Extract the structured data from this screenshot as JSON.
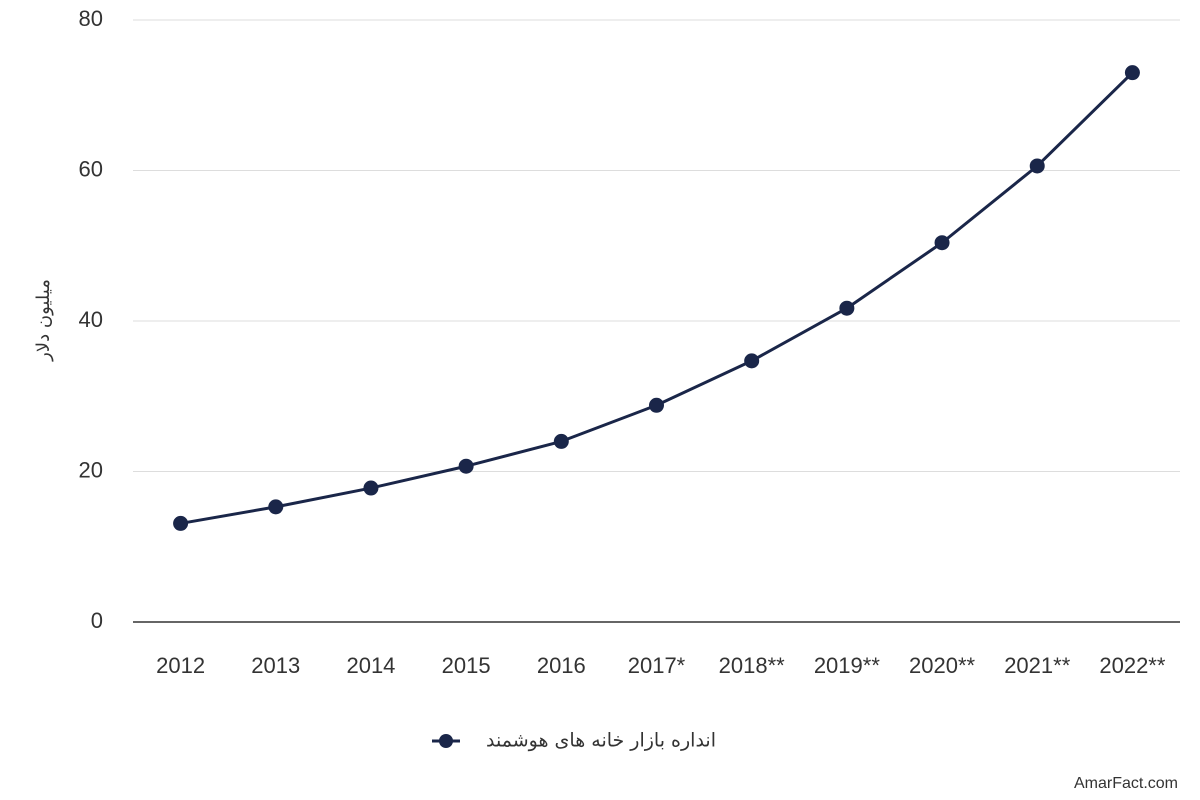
{
  "chart_data": {
    "type": "line",
    "y_label": "میلیون دلار",
    "categories": [
      "2012",
      "2013",
      "2014",
      "2015",
      "2016",
      "2017*",
      "2018**",
      "2019**",
      "2020**",
      "2021**",
      "2022**"
    ],
    "series": [
      {
        "name": "انداره بازار خانه های هوشمند",
        "color": "#1a2649",
        "values": [
          13.1,
          15.3,
          17.8,
          20.7,
          24.0,
          28.8,
          34.7,
          41.7,
          50.4,
          60.6,
          73.0
        ]
      }
    ],
    "ylim": [
      0,
      80
    ],
    "yticks": [
      0,
      20,
      40,
      60,
      80
    ],
    "grid": true,
    "watermark": "AmarFact.com"
  }
}
